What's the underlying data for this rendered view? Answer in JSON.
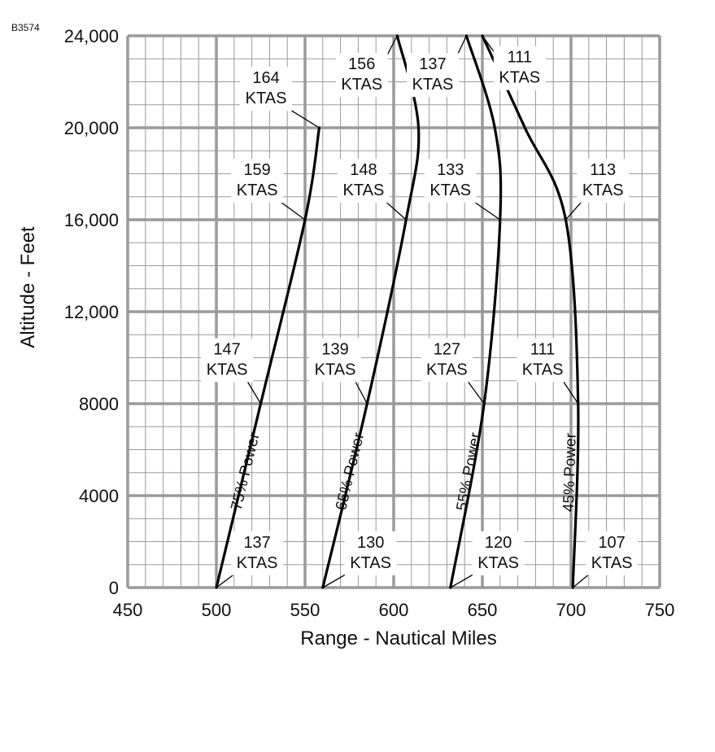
{
  "figure_id": "B3574",
  "chart_data": {
    "type": "line",
    "xlabel": "Range - Nautical Miles",
    "ylabel": "Altitude - Feet",
    "xlim": [
      450,
      750
    ],
    "ylim": [
      0,
      24000
    ],
    "x_ticks": [
      "450",
      "500",
      "550",
      "600",
      "650",
      "700",
      "750"
    ],
    "y_ticks": [
      "0",
      "4000",
      "8000",
      "12,000",
      "16,000",
      "20,000",
      "24,000"
    ],
    "grid": true,
    "legend": "none",
    "line_color": "#000000",
    "grid_color": "#9a9a9a",
    "series": [
      {
        "name": "75% Power",
        "points": [
          [
            500,
            0
          ],
          [
            525,
            8000
          ],
          [
            550,
            16000
          ],
          [
            558,
            20000
          ]
        ],
        "ktas_labels": [
          {
            "text": [
              "137",
              "KTAS"
            ],
            "at": [
              500,
              0
            ],
            "label_at": [
              523,
              1600
            ]
          },
          {
            "text": [
              "147",
              "KTAS"
            ],
            "at": [
              525,
              8000
            ],
            "label_at": [
              506,
              10000
            ]
          },
          {
            "text": [
              "159",
              "KTAS"
            ],
            "at": [
              550,
              16000
            ],
            "label_at": [
              523,
              17800
            ]
          },
          {
            "text": [
              "164",
              "KTAS"
            ],
            "at": [
              558,
              20000
            ],
            "label_at": [
              528,
              21800
            ]
          }
        ],
        "power_label_at": [
          519,
          5000
        ]
      },
      {
        "name": "65% Power",
        "points": [
          [
            560,
            0
          ],
          [
            585,
            8000
          ],
          [
            607,
            16000
          ],
          [
            614,
            20000
          ],
          [
            602,
            24000
          ]
        ],
        "ktas_labels": [
          {
            "text": [
              "130",
              "KTAS"
            ],
            "at": [
              560,
              0
            ],
            "label_at": [
              587,
              1600
            ]
          },
          {
            "text": [
              "139",
              "KTAS"
            ],
            "at": [
              585,
              8000
            ],
            "label_at": [
              567,
              10000
            ]
          },
          {
            "text": [
              "148",
              "KTAS"
            ],
            "at": [
              607,
              16000
            ],
            "label_at": [
              583,
              17800
            ]
          },
          {
            "text": [
              "156",
              "KTAS"
            ],
            "at": [
              602,
              24000
            ],
            "label_at": [
              582,
              22400
            ]
          }
        ],
        "power_label_at": [
          578,
          5000
        ]
      },
      {
        "name": "55% Power",
        "points": [
          [
            632,
            0
          ],
          [
            651,
            8000
          ],
          [
            660,
            16000
          ],
          [
            657,
            20000
          ],
          [
            641,
            24000
          ]
        ],
        "ktas_labels": [
          {
            "text": [
              "120",
              "KTAS"
            ],
            "at": [
              632,
              0
            ],
            "label_at": [
              659,
              1600
            ]
          },
          {
            "text": [
              "127",
              "KTAS"
            ],
            "at": [
              651,
              8000
            ],
            "label_at": [
              630,
              10000
            ]
          },
          {
            "text": [
              "133",
              "KTAS"
            ],
            "at": [
              660,
              16000
            ],
            "label_at": [
              632,
              17800
            ]
          },
          {
            "text": [
              "137",
              "KTAS"
            ],
            "at": [
              641,
              24000
            ],
            "label_at": [
              622,
              22400
            ]
          }
        ],
        "power_label_at": [
          645,
          5000
        ]
      },
      {
        "name": "45% Power",
        "points": [
          [
            701,
            0
          ],
          [
            704,
            8000
          ],
          [
            697,
            16000
          ],
          [
            674,
            20000
          ],
          [
            650,
            24000
          ]
        ],
        "ktas_labels": [
          {
            "text": [
              "107",
              "KTAS"
            ],
            "at": [
              701,
              0
            ],
            "label_at": [
              723,
              1600
            ]
          },
          {
            "text": [
              "111",
              "KTAS"
            ],
            "at": [
              704,
              8000
            ],
            "label_at": [
              684,
              10000
            ]
          },
          {
            "text": [
              "113",
              "KTAS"
            ],
            "at": [
              697,
              16000
            ],
            "label_at": [
              718,
              17800
            ]
          },
          {
            "text": [
              "111",
              "KTAS"
            ],
            "at": [
              650,
              24000
            ],
            "label_at": [
              671,
              22700
            ]
          }
        ],
        "power_label_at": [
          702,
          5000
        ]
      }
    ]
  }
}
